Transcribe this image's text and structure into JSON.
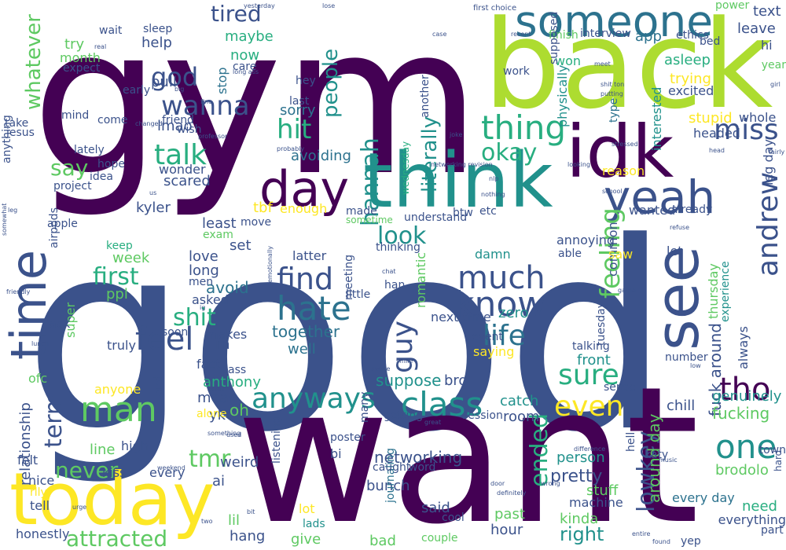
{
  "palette": {
    "dark_purple": "#440154",
    "indigo": "#3b528b",
    "steel_blue": "#2c728e",
    "teal": "#21918c",
    "sea_green": "#28ae80",
    "green": "#5ec962",
    "lime": "#addc30",
    "yellow": "#fde725"
  },
  "words": [
    {
      "text": "good"
    },
    {
      "text": "gym"
    },
    {
      "text": "want"
    },
    {
      "text": "back"
    },
    {
      "text": "think"
    },
    {
      "text": "idk"
    },
    {
      "text": "yeah"
    },
    {
      "text": "today"
    },
    {
      "text": "day"
    },
    {
      "text": "someone"
    },
    {
      "text": "time"
    },
    {
      "text": "see"
    },
    {
      "text": "know"
    },
    {
      "text": "much"
    },
    {
      "text": "hate"
    },
    {
      "text": "find"
    },
    {
      "text": "feel"
    },
    {
      "text": "thing"
    },
    {
      "text": "talk"
    },
    {
      "text": "wanna"
    },
    {
      "text": "class"
    },
    {
      "text": "anyways"
    },
    {
      "text": "man"
    },
    {
      "text": "life"
    },
    {
      "text": "tho"
    },
    {
      "text": "one"
    },
    {
      "text": "even"
    },
    {
      "text": "sure"
    },
    {
      "text": "andrew"
    },
    {
      "text": "hannah"
    },
    {
      "text": "miss"
    },
    {
      "text": "god"
    },
    {
      "text": "hit"
    },
    {
      "text": "tired"
    },
    {
      "text": "first"
    },
    {
      "text": "shit"
    },
    {
      "text": "say"
    },
    {
      "text": "feeling"
    },
    {
      "text": "guy"
    },
    {
      "text": "look"
    },
    {
      "text": "okay"
    },
    {
      "text": "people"
    },
    {
      "text": "literally"
    },
    {
      "text": "lowkey"
    },
    {
      "text": "ended"
    },
    {
      "text": "attracted"
    },
    {
      "text": "tmr"
    },
    {
      "text": "term"
    },
    {
      "text": "never"
    },
    {
      "text": "whatever"
    },
    {
      "text": "pretty"
    },
    {
      "text": "fuck around"
    },
    {
      "text": "networking"
    },
    {
      "text": "relationship"
    },
    {
      "text": "around day"
    },
    {
      "text": "maybe"
    },
    {
      "text": "help"
    },
    {
      "text": "now"
    },
    {
      "text": "pull"
    },
    {
      "text": "lmao"
    },
    {
      "text": "sorry"
    },
    {
      "text": "stop"
    },
    {
      "text": "avoiding"
    },
    {
      "text": "scared"
    },
    {
      "text": "wonder"
    },
    {
      "text": "kyler"
    },
    {
      "text": "tbf"
    },
    {
      "text": "enough"
    },
    {
      "text": "least"
    },
    {
      "text": "set"
    },
    {
      "text": "love"
    },
    {
      "text": "long"
    },
    {
      "text": "avoid"
    },
    {
      "text": "week"
    },
    {
      "text": "ppl"
    },
    {
      "text": "keep"
    },
    {
      "text": "together"
    },
    {
      "text": "well"
    },
    {
      "text": "latter"
    },
    {
      "text": "damn"
    },
    {
      "text": "zero"
    },
    {
      "text": "next time"
    },
    {
      "text": "romantic"
    },
    {
      "text": "meeting"
    },
    {
      "text": "little"
    },
    {
      "text": "asleep"
    },
    {
      "text": "trying"
    },
    {
      "text": "excited"
    },
    {
      "text": "interested"
    },
    {
      "text": "stupid"
    },
    {
      "text": "headed"
    },
    {
      "text": "whole"
    },
    {
      "text": "thursday"
    },
    {
      "text": "experience"
    },
    {
      "text": "front"
    },
    {
      "text": "talking"
    },
    {
      "text": "always"
    },
    {
      "text": "genuinely"
    },
    {
      "text": "chill"
    },
    {
      "text": "fucking"
    },
    {
      "text": "brodolo"
    },
    {
      "text": "every day"
    },
    {
      "text": "need"
    },
    {
      "text": "everything"
    },
    {
      "text": "person"
    },
    {
      "text": "stuff"
    },
    {
      "text": "kinda"
    },
    {
      "text": "right"
    },
    {
      "text": "hour"
    },
    {
      "text": "past"
    },
    {
      "text": "machine"
    },
    {
      "text": "cool"
    },
    {
      "text": "couple"
    },
    {
      "text": "said"
    },
    {
      "text": "bad"
    },
    {
      "text": "bunch"
    },
    {
      "text": "journaling"
    },
    {
      "text": "give"
    },
    {
      "text": "lot"
    },
    {
      "text": "lads"
    },
    {
      "text": "hang"
    },
    {
      "text": "lil"
    },
    {
      "text": "honestly"
    },
    {
      "text": "tell"
    },
    {
      "text": "kiss"
    },
    {
      "text": "every"
    },
    {
      "text": "ai"
    },
    {
      "text": "weird"
    },
    {
      "text": "line"
    },
    {
      "text": "high"
    },
    {
      "text": "mean"
    },
    {
      "text": "yk"
    },
    {
      "text": "oh"
    },
    {
      "text": "anyone"
    },
    {
      "text": "super"
    },
    {
      "text": "ofc"
    },
    {
      "text": "ask"
    },
    {
      "text": "felt"
    },
    {
      "text": "nice"
    },
    {
      "text": "rlly"
    },
    {
      "text": "catch"
    },
    {
      "text": "room"
    },
    {
      "text": "suppose"
    },
    {
      "text": "bro"
    },
    {
      "text": "getting"
    },
    {
      "text": "bi"
    },
    {
      "text": "listening"
    },
    {
      "text": "poster"
    },
    {
      "text": "session"
    },
    {
      "text": "anthony"
    },
    {
      "text": "fact"
    },
    {
      "text": "ass"
    },
    {
      "text": "makes"
    },
    {
      "text": "rn"
    },
    {
      "text": "truly"
    },
    {
      "text": "soon"
    },
    {
      "text": "asked"
    },
    {
      "text": "men"
    },
    {
      "text": "alone"
    },
    {
      "text": "end"
    },
    {
      "text": "saying"
    },
    {
      "text": "event"
    },
    {
      "text": "han"
    },
    {
      "text": "thinking"
    },
    {
      "text": "made"
    },
    {
      "text": "sometime"
    },
    {
      "text": "understand"
    },
    {
      "text": "etc"
    },
    {
      "text": "btw"
    },
    {
      "text": "wednesday"
    },
    {
      "text": "another"
    },
    {
      "text": "common"
    },
    {
      "text": "saw"
    },
    {
      "text": "reason"
    },
    {
      "text": "annoying"
    },
    {
      "text": "able"
    },
    {
      "text": "wanted"
    },
    {
      "text": "already"
    },
    {
      "text": "let"
    },
    {
      "text": "tuesday"
    },
    {
      "text": "katy"
    },
    {
      "text": "sense"
    },
    {
      "text": "number"
    },
    {
      "text": "leg day"
    },
    {
      "text": "interview"
    },
    {
      "text": "app"
    },
    {
      "text": "finish"
    },
    {
      "text": "won"
    },
    {
      "text": "supposed"
    },
    {
      "text": "physically"
    },
    {
      "text": "type"
    },
    {
      "text": "work"
    },
    {
      "text": "ethics"
    },
    {
      "text": "bed"
    },
    {
      "text": "leave"
    },
    {
      "text": "text"
    },
    {
      "text": "power"
    },
    {
      "text": "hi"
    },
    {
      "text": "year"
    },
    {
      "text": "first choice"
    },
    {
      "text": "try"
    },
    {
      "text": "month"
    },
    {
      "text": "wait"
    },
    {
      "text": "sleep"
    },
    {
      "text": "expect"
    },
    {
      "text": "care"
    },
    {
      "text": "early"
    },
    {
      "text": "mind"
    },
    {
      "text": "come"
    },
    {
      "text": "friend"
    },
    {
      "text": "wish"
    },
    {
      "text": "take"
    },
    {
      "text": "jesus"
    },
    {
      "text": "lately"
    },
    {
      "text": "hope"
    },
    {
      "text": "idea"
    },
    {
      "text": "project"
    },
    {
      "text": "anything"
    },
    {
      "text": "apple"
    },
    {
      "text": "airpods"
    },
    {
      "text": "exam"
    },
    {
      "text": "move"
    },
    {
      "text": "hey"
    },
    {
      "text": "last"
    },
    {
      "text": "part"
    },
    {
      "text": "yep"
    },
    {
      "text": "hard"
    },
    {
      "text": "town"
    },
    {
      "text": "hell"
    },
    {
      "text": "many"
    },
    {
      "text": "word"
    },
    {
      "text": "caught"
    },
    {
      "text": "long ass"
    },
    {
      "text": "shit ton"
    },
    {
      "text": "putting"
    },
    {
      "text": "meet"
    },
    {
      "text": "fine"
    },
    {
      "text": "big"
    },
    {
      "text": "case"
    },
    {
      "text": "recent"
    },
    {
      "text": "lose"
    },
    {
      "text": "yesterday"
    },
    {
      "text": "real"
    },
    {
      "text": "girl"
    },
    {
      "text": "school"
    },
    {
      "text": "nothing"
    },
    {
      "text": "looking"
    },
    {
      "text": "nlp"
    },
    {
      "text": "networking revision"
    },
    {
      "text": "changed"
    },
    {
      "text": "professor"
    },
    {
      "text": "probably"
    },
    {
      "text": "friendly"
    },
    {
      "text": "difference"
    },
    {
      "text": "actual"
    },
    {
      "text": "something"
    },
    {
      "text": "used"
    },
    {
      "text": "music"
    },
    {
      "text": "smile"
    },
    {
      "text": "aware"
    },
    {
      "text": "lunch"
    },
    {
      "text": "somewhat"
    },
    {
      "text": "weekend"
    },
    {
      "text": "urge"
    },
    {
      "text": "bit"
    },
    {
      "text": "found"
    },
    {
      "text": "two"
    },
    {
      "text": "door"
    },
    {
      "text": "wrong"
    },
    {
      "text": "definitely"
    },
    {
      "text": "entire"
    },
    {
      "text": "stressed"
    },
    {
      "text": "emotionally"
    },
    {
      "text": "us"
    },
    {
      "text": "game"
    },
    {
      "text": "refuse"
    },
    {
      "text": "low"
    },
    {
      "text": "fairly"
    },
    {
      "text": "head"
    },
    {
      "text": "great"
    },
    {
      "text": "chat"
    },
    {
      "text": "leg"
    },
    {
      "text": "joke"
    },
    {
      "text": "ig"
    }
  ]
}
